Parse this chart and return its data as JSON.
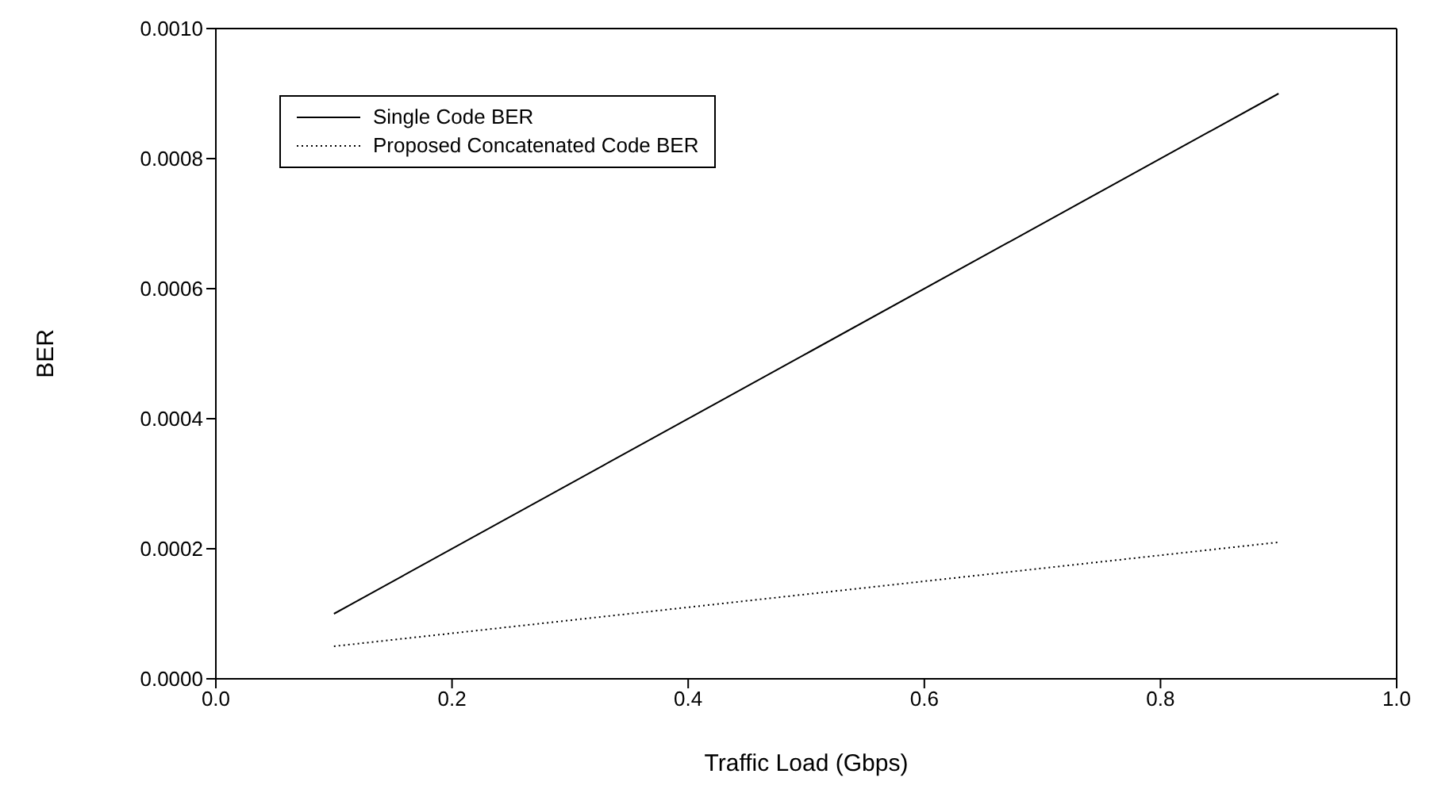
{
  "chart_data": {
    "type": "line",
    "xlabel": "Traffic Load (Gbps)",
    "ylabel": "BER",
    "xlim": [
      0,
      1
    ],
    "xticks": [
      {
        "value": 0,
        "label": "0.0"
      },
      {
        "value": 0.2,
        "label": "0.2"
      },
      {
        "value": 0.4,
        "label": "0.4"
      },
      {
        "value": 0.6,
        "label": "0.6"
      },
      {
        "value": 0.8,
        "label": "0.8"
      },
      {
        "value": 1,
        "label": "1.0"
      }
    ],
    "ylim": [
      0,
      0.001
    ],
    "yticks": [
      {
        "value": 0,
        "label": "0.0000"
      },
      {
        "value": 0.0002,
        "label": "0.0002"
      },
      {
        "value": 0.0004,
        "label": "0.0004"
      },
      {
        "value": 0.0006,
        "label": "0.0006"
      },
      {
        "value": 0.0008,
        "label": "0.0008"
      },
      {
        "value": 0.001,
        "label": "0.0010"
      }
    ],
    "x": [
      0.1,
      0.9
    ],
    "series": [
      {
        "name": "Single Code BER",
        "color": "#000000",
        "values": [
          0.0001,
          0.0009
        ],
        "line_style": "solid"
      },
      {
        "name": "Proposed Concatenated Code BER",
        "color": "#000000",
        "values": [
          5e-05,
          0.00021
        ],
        "line_style": "dotted"
      }
    ],
    "grid": false,
    "legend": "top left",
    "marker": "none"
  }
}
